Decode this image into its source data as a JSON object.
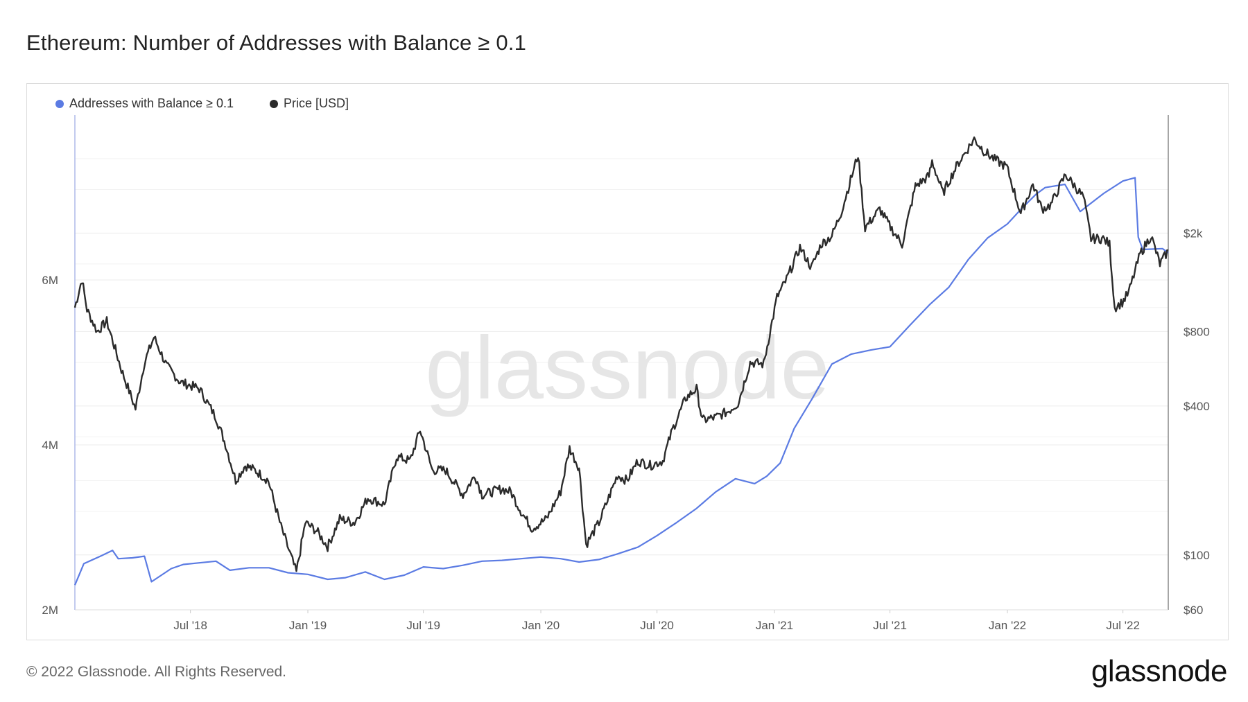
{
  "title": "Ethereum: Number of Addresses with Balance ≥ 0.1",
  "footer": "© 2022 Glassnode. All Rights Reserved.",
  "brand": "glassnode",
  "watermark": "glassnode",
  "colors": {
    "addresses": "#5b7be3",
    "price": "#2b2b2b",
    "grid": "#ebebeb",
    "axis": "#aeb9e8"
  },
  "legend": [
    {
      "label": "Addresses with Balance ≥ 0.1",
      "color": "#5b7be3"
    },
    {
      "label": "Price [USD]",
      "color": "#2b2b2b"
    }
  ],
  "chart_data": {
    "type": "line",
    "title": "Ethereum: Number of Addresses with Balance ≥ 0.1",
    "x_range": [
      "2018-01-01",
      "2022-09-10"
    ],
    "x_ticks": [
      {
        "label": "Jul '18",
        "date": "2018-07-01"
      },
      {
        "label": "Jan '19",
        "date": "2019-01-01"
      },
      {
        "label": "Jul '19",
        "date": "2019-07-01"
      },
      {
        "label": "Jan '20",
        "date": "2020-01-01"
      },
      {
        "label": "Jul '20",
        "date": "2020-07-01"
      },
      {
        "label": "Jan '21",
        "date": "2021-01-01"
      },
      {
        "label": "Jul '21",
        "date": "2021-07-01"
      },
      {
        "label": "Jan '22",
        "date": "2022-01-01"
      },
      {
        "label": "Jul '22",
        "date": "2022-07-01"
      }
    ],
    "y_left": {
      "label": "",
      "scale": "linear",
      "ticks": [
        {
          "label": "2M",
          "value": 2000000
        },
        {
          "label": "4M",
          "value": 4000000
        },
        {
          "label": "6M",
          "value": 6000000
        }
      ],
      "range": [
        2000000,
        8000000
      ]
    },
    "y_right": {
      "label": "",
      "scale": "log",
      "ticks": [
        {
          "label": "$60",
          "value": 60
        },
        {
          "label": "$100",
          "value": 100
        },
        {
          "label": "$400",
          "value": 400
        },
        {
          "label": "$800",
          "value": 800
        },
        {
          "label": "$2k",
          "value": 2000
        }
      ],
      "range": [
        60,
        6000
      ]
    },
    "grid": true,
    "legend_position": "top-left",
    "series": [
      {
        "name": "Addresses with Balance ≥ 0.1",
        "axis": "left",
        "points": [
          [
            "2018-01-01",
            2300000
          ],
          [
            "2018-01-15",
            2560000
          ],
          [
            "2018-02-10",
            2650000
          ],
          [
            "2018-03-01",
            2720000
          ],
          [
            "2018-03-10",
            2620000
          ],
          [
            "2018-04-01",
            2630000
          ],
          [
            "2018-04-20",
            2650000
          ],
          [
            "2018-05-01",
            2340000
          ],
          [
            "2018-06-01",
            2500000
          ],
          [
            "2018-06-20",
            2550000
          ],
          [
            "2018-07-15",
            2570000
          ],
          [
            "2018-08-10",
            2590000
          ],
          [
            "2018-09-01",
            2480000
          ],
          [
            "2018-10-01",
            2510000
          ],
          [
            "2018-11-01",
            2510000
          ],
          [
            "2018-12-01",
            2450000
          ],
          [
            "2019-01-01",
            2430000
          ],
          [
            "2019-02-01",
            2370000
          ],
          [
            "2019-03-01",
            2390000
          ],
          [
            "2019-04-01",
            2460000
          ],
          [
            "2019-05-01",
            2370000
          ],
          [
            "2019-06-01",
            2420000
          ],
          [
            "2019-07-01",
            2520000
          ],
          [
            "2019-08-01",
            2500000
          ],
          [
            "2019-09-01",
            2540000
          ],
          [
            "2019-10-01",
            2590000
          ],
          [
            "2019-11-01",
            2600000
          ],
          [
            "2019-12-01",
            2620000
          ],
          [
            "2020-01-01",
            2640000
          ],
          [
            "2020-02-01",
            2620000
          ],
          [
            "2020-03-01",
            2580000
          ],
          [
            "2020-04-01",
            2610000
          ],
          [
            "2020-05-01",
            2680000
          ],
          [
            "2020-06-01",
            2760000
          ],
          [
            "2020-07-01",
            2900000
          ],
          [
            "2020-08-01",
            3060000
          ],
          [
            "2020-09-01",
            3230000
          ],
          [
            "2020-10-01",
            3430000
          ],
          [
            "2020-11-01",
            3590000
          ],
          [
            "2020-12-01",
            3530000
          ],
          [
            "2020-12-20",
            3620000
          ],
          [
            "2021-01-10",
            3780000
          ],
          [
            "2021-02-01",
            4200000
          ],
          [
            "2021-03-01",
            4560000
          ],
          [
            "2021-04-01",
            4980000
          ],
          [
            "2021-05-01",
            5100000
          ],
          [
            "2021-06-01",
            5150000
          ],
          [
            "2021-07-01",
            5190000
          ],
          [
            "2021-08-01",
            5450000
          ],
          [
            "2021-09-01",
            5700000
          ],
          [
            "2021-10-01",
            5910000
          ],
          [
            "2021-11-01",
            6250000
          ],
          [
            "2021-12-01",
            6510000
          ],
          [
            "2022-01-01",
            6680000
          ],
          [
            "2022-01-25",
            6880000
          ],
          [
            "2022-02-15",
            7040000
          ],
          [
            "2022-03-01",
            7120000
          ],
          [
            "2022-04-01",
            7160000
          ],
          [
            "2022-04-25",
            6830000
          ],
          [
            "2022-05-15",
            6950000
          ],
          [
            "2022-06-01",
            7050000
          ],
          [
            "2022-07-01",
            7200000
          ],
          [
            "2022-07-20",
            7240000
          ],
          [
            "2022-07-25",
            6520000
          ],
          [
            "2022-08-01",
            6370000
          ],
          [
            "2022-09-01",
            6380000
          ],
          [
            "2022-09-10",
            6330000
          ]
        ]
      },
      {
        "name": "Price [USD]",
        "axis": "right",
        "points": [
          [
            "2018-01-01",
            1000
          ],
          [
            "2018-01-12",
            1300
          ],
          [
            "2018-01-20",
            980
          ],
          [
            "2018-02-05",
            800
          ],
          [
            "2018-02-20",
            880
          ],
          [
            "2018-03-15",
            560
          ],
          [
            "2018-04-06",
            390
          ],
          [
            "2018-04-20",
            600
          ],
          [
            "2018-05-05",
            760
          ],
          [
            "2018-05-25",
            580
          ],
          [
            "2018-06-15",
            500
          ],
          [
            "2018-07-15",
            470
          ],
          [
            "2018-08-10",
            360
          ],
          [
            "2018-08-25",
            280
          ],
          [
            "2018-09-10",
            200
          ],
          [
            "2018-09-25",
            230
          ],
          [
            "2018-10-10",
            220
          ],
          [
            "2018-10-31",
            200
          ],
          [
            "2018-11-20",
            130
          ],
          [
            "2018-12-14",
            85
          ],
          [
            "2018-12-28",
            135
          ],
          [
            "2019-01-15",
            125
          ],
          [
            "2019-02-01",
            108
          ],
          [
            "2019-02-20",
            140
          ],
          [
            "2019-03-15",
            135
          ],
          [
            "2019-04-05",
            170
          ],
          [
            "2019-05-01",
            160
          ],
          [
            "2019-05-20",
            250
          ],
          [
            "2019-06-10",
            240
          ],
          [
            "2019-06-26",
            320
          ],
          [
            "2019-07-15",
            220
          ],
          [
            "2019-08-05",
            220
          ],
          [
            "2019-09-01",
            175
          ],
          [
            "2019-09-20",
            210
          ],
          [
            "2019-10-01",
            175
          ],
          [
            "2019-11-01",
            185
          ],
          [
            "2019-11-15",
            180
          ],
          [
            "2019-12-01",
            150
          ],
          [
            "2019-12-18",
            128
          ],
          [
            "2020-01-10",
            140
          ],
          [
            "2020-02-01",
            180
          ],
          [
            "2020-02-15",
            270
          ],
          [
            "2020-03-01",
            225
          ],
          [
            "2020-03-12",
            110
          ],
          [
            "2020-04-01",
            135
          ],
          [
            "2020-04-30",
            210
          ],
          [
            "2020-05-15",
            200
          ],
          [
            "2020-06-01",
            240
          ],
          [
            "2020-06-20",
            230
          ],
          [
            "2020-07-10",
            240
          ],
          [
            "2020-07-25",
            320
          ],
          [
            "2020-08-15",
            430
          ],
          [
            "2020-09-01",
            470
          ],
          [
            "2020-09-10",
            350
          ],
          [
            "2020-10-01",
            360
          ],
          [
            "2020-10-20",
            380
          ],
          [
            "2020-11-05",
            410
          ],
          [
            "2020-11-24",
            600
          ],
          [
            "2020-12-15",
            590
          ],
          [
            "2021-01-05",
            1100
          ],
          [
            "2021-01-20",
            1300
          ],
          [
            "2021-02-10",
            1750
          ],
          [
            "2021-02-28",
            1450
          ],
          [
            "2021-03-15",
            1800
          ],
          [
            "2021-04-01",
            1950
          ],
          [
            "2021-04-15",
            2400
          ],
          [
            "2021-05-12",
            4150
          ],
          [
            "2021-05-23",
            2100
          ],
          [
            "2021-06-15",
            2500
          ],
          [
            "2021-06-30",
            2150
          ],
          [
            "2021-07-20",
            1800
          ],
          [
            "2021-08-10",
            3100
          ],
          [
            "2021-08-31",
            3400
          ],
          [
            "2021-09-05",
            3900
          ],
          [
            "2021-09-22",
            2900
          ],
          [
            "2021-10-15",
            3800
          ],
          [
            "2021-11-10",
            4800
          ],
          [
            "2021-11-25",
            4300
          ],
          [
            "2021-12-10",
            4000
          ],
          [
            "2021-12-31",
            3700
          ],
          [
            "2022-01-22",
            2400
          ],
          [
            "2022-02-10",
            3150
          ],
          [
            "2022-02-24",
            2500
          ],
          [
            "2022-03-10",
            2600
          ],
          [
            "2022-04-02",
            3450
          ],
          [
            "2022-04-30",
            2800
          ],
          [
            "2022-05-12",
            1900
          ],
          [
            "2022-05-31",
            1900
          ],
          [
            "2022-06-10",
            1800
          ],
          [
            "2022-06-18",
            1000
          ],
          [
            "2022-06-30",
            1050
          ],
          [
            "2022-07-10",
            1150
          ],
          [
            "2022-07-28",
            1650
          ],
          [
            "2022-08-14",
            1950
          ],
          [
            "2022-08-28",
            1500
          ],
          [
            "2022-09-10",
            1700
          ]
        ]
      }
    ]
  }
}
